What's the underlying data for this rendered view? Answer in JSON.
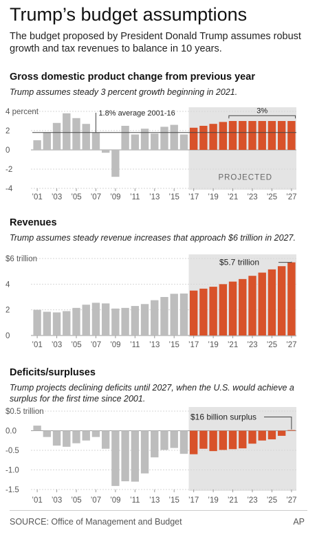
{
  "header": {
    "title": "Trump’s budget assumptions",
    "deck": "The budget proposed by President Donald Trump assumes robust growth and tax revenues to balance in 10 years."
  },
  "colors": {
    "actual": "#bdbdbd",
    "projected": "#d8522a",
    "projected_bg": "#e4e4e4",
    "axis": "#888888"
  },
  "chart_data": [
    {
      "type": "bar",
      "title": "Gross domestic product change from previous year",
      "subtitle": "Trump assumes steady 3 percent growth beginning in 2021.",
      "x_tick_labels": [
        "’01",
        "’03",
        "’05",
        "’07",
        "’09",
        "’11",
        "’13",
        "’15",
        "’17",
        "’19",
        "’21",
        "’23",
        "’25",
        "’27"
      ],
      "y_ticks": [
        4,
        2,
        0,
        -2,
        -4
      ],
      "y_tick_labels": [
        "4 percent",
        "2",
        "0",
        "-2",
        "-4"
      ],
      "ylim": [
        -4,
        4
      ],
      "years": [
        2001,
        2002,
        2003,
        2004,
        2005,
        2006,
        2007,
        2008,
        2009,
        2010,
        2011,
        2012,
        2013,
        2014,
        2015,
        2016,
        2017,
        2018,
        2019,
        2020,
        2021,
        2022,
        2023,
        2024,
        2025,
        2026,
        2027
      ],
      "values": [
        1.0,
        1.8,
        2.8,
        3.8,
        3.3,
        2.7,
        1.8,
        -0.3,
        -2.8,
        2.5,
        1.6,
        2.2,
        1.7,
        2.4,
        2.6,
        1.6,
        2.3,
        2.5,
        2.7,
        2.9,
        3.0,
        3.0,
        3.0,
        3.0,
        3.0,
        3.0,
        3.0
      ],
      "projected_from": 2017,
      "projected_label": "PROJECTED",
      "reference_line": {
        "value": 1.8,
        "label": "1.8% average 2001-16"
      },
      "bracket": {
        "from": 2021,
        "to": 2027,
        "label": "3%"
      }
    },
    {
      "type": "bar",
      "title": "Revenues",
      "subtitle": "Trump assumes steady revenue increases that approach $6 trillion in 2027.",
      "x_tick_labels": [
        "’01",
        "’03",
        "’05",
        "’07",
        "’09",
        "’11",
        "’13",
        "’15",
        "’17",
        "’19",
        "’21",
        "’23",
        "’25",
        "’27"
      ],
      "y_ticks": [
        6,
        4,
        2,
        0
      ],
      "y_tick_labels": [
        "$6 trillion",
        "4",
        "2",
        "0"
      ],
      "ylim": [
        0,
        6
      ],
      "years": [
        2001,
        2002,
        2003,
        2004,
        2005,
        2006,
        2007,
        2008,
        2009,
        2010,
        2011,
        2012,
        2013,
        2014,
        2015,
        2016,
        2017,
        2018,
        2019,
        2020,
        2021,
        2022,
        2023,
        2024,
        2025,
        2026,
        2027
      ],
      "values": [
        2.0,
        1.85,
        1.8,
        1.9,
        2.15,
        2.4,
        2.55,
        2.5,
        2.1,
        2.15,
        2.3,
        2.45,
        2.75,
        3.0,
        3.25,
        3.27,
        3.5,
        3.65,
        3.8,
        4.0,
        4.2,
        4.4,
        4.65,
        4.9,
        5.15,
        5.4,
        5.7
      ],
      "projected_from": 2017,
      "callout": {
        "year": 2027,
        "label": "$5.7 trillion"
      }
    },
    {
      "type": "bar",
      "title": "Deficits/surpluses",
      "subtitle": "Trump projects declining deficits until 2027, when the U.S. would achieve a surplus for the first time since 2001.",
      "x_tick_labels": [
        "’01",
        "’03",
        "’05",
        "’07",
        "’09",
        "’11",
        "’13",
        "’15",
        "’17",
        "’19",
        "’21",
        "’23",
        "’25",
        "’27"
      ],
      "y_ticks": [
        0.5,
        0.0,
        -0.5,
        -1.0,
        -1.5
      ],
      "y_tick_labels": [
        "$0.5 trillion",
        "0.0",
        "-0.5",
        "-1.0",
        "-1.5"
      ],
      "ylim": [
        -1.5,
        0.5
      ],
      "years": [
        2001,
        2002,
        2003,
        2004,
        2005,
        2006,
        2007,
        2008,
        2009,
        2010,
        2011,
        2012,
        2013,
        2014,
        2015,
        2016,
        2017,
        2018,
        2019,
        2020,
        2021,
        2022,
        2023,
        2024,
        2025,
        2026,
        2027
      ],
      "values": [
        0.13,
        -0.16,
        -0.38,
        -0.41,
        -0.32,
        -0.25,
        -0.16,
        -0.46,
        -1.41,
        -1.29,
        -1.3,
        -1.09,
        -0.68,
        -0.49,
        -0.44,
        -0.59,
        -0.6,
        -0.46,
        -0.52,
        -0.49,
        -0.47,
        -0.45,
        -0.33,
        -0.25,
        -0.22,
        -0.13,
        0.016
      ],
      "projected_from": 2017,
      "callout": {
        "year": 2027,
        "label": "$16 billion surplus"
      }
    }
  ],
  "footer": {
    "source": "SOURCE: Office of Management and Budget",
    "credit": "AP"
  }
}
